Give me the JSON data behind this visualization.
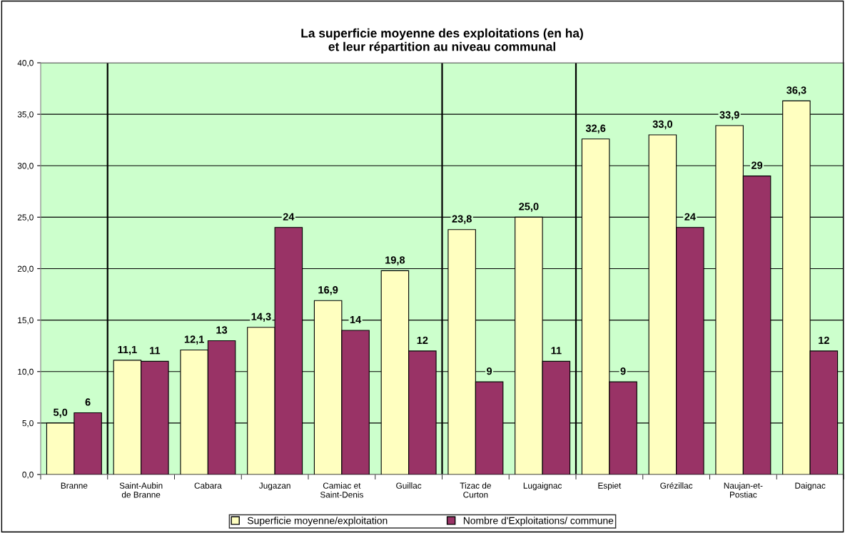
{
  "chart_data": {
    "type": "bar",
    "title": "La superficie moyenne des exploitations (en ha)\net leur répartition au niveau communal",
    "categories": [
      "Branne",
      "Saint-Aubin\nde Branne",
      "Cabara",
      "Jugazan",
      "Camiac et\nSaint-Denis",
      "Guillac",
      "Tizac de\nCurton",
      "Lugaignac",
      "Espiet",
      "Grézillac",
      "Naujan-et-\nPostiac",
      "Daignac"
    ],
    "series": [
      {
        "name": "Superficie moyenne/exploitation",
        "color": "#ffffc0",
        "values": [
          5.0,
          11.1,
          12.1,
          14.3,
          16.9,
          19.8,
          23.8,
          25.0,
          32.6,
          33.0,
          33.9,
          36.3
        ],
        "value_labels": [
          "5,0",
          "11,1",
          "12,1",
          "14,3",
          "16,9",
          "19,8",
          "23,8",
          "25,0",
          "32,6",
          "33,0",
          "33,9",
          "36,3"
        ]
      },
      {
        "name": "Nombre d'Exploitations/ commune",
        "color": "#993366",
        "values": [
          6,
          11,
          13,
          24,
          14,
          12,
          9,
          11,
          9,
          24,
          29,
          12
        ],
        "value_labels": [
          "6",
          "11",
          "13",
          "24",
          "14",
          "12",
          "9",
          "11",
          "9",
          "24",
          "29",
          "12"
        ]
      }
    ],
    "ylim": [
      0,
      40
    ],
    "yticks": [
      {
        "value": 0,
        "label": "0,0"
      },
      {
        "value": 5,
        "label": "5,0"
      },
      {
        "value": 10,
        "label": "10,0"
      },
      {
        "value": 15,
        "label": "15,0"
      },
      {
        "value": 20,
        "label": "20,0"
      },
      {
        "value": 25,
        "label": "25,0"
      },
      {
        "value": 30,
        "label": "30,0"
      },
      {
        "value": 35,
        "label": "35,0"
      },
      {
        "value": 40,
        "label": "40,0"
      }
    ],
    "grid": "y",
    "legend": "bottom"
  }
}
